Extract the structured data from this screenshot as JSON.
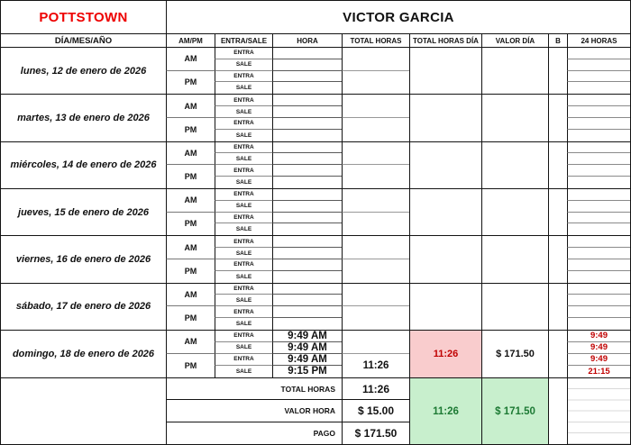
{
  "colors": {
    "location_red": "#ee0000",
    "value_red": "#c00000",
    "highlight_pink_bg": "#f9cccd",
    "highlight_green_bg": "#c8efcd",
    "highlight_green_text": "#1d7a34"
  },
  "title": {
    "location": "POTTSTOWN",
    "employee": "VICTOR GARCIA"
  },
  "header": {
    "day": "DÍA/MES/AÑO",
    "ampm": "AM/PM",
    "inout": "ENTRA/SALE",
    "hora": "HORA",
    "total_horas": "TOTAL HORAS",
    "total_horas_dia": "TOTAL HORAS DÍA",
    "valor_dia": "VALOR DÍA",
    "b": "B",
    "h24": "24 HORAS"
  },
  "row_labels": {
    "am": "AM",
    "pm": "PM",
    "entra": "ENTRA",
    "sale": "SALE"
  },
  "days": [
    {
      "label": "lunes, 12 de enero de 2026",
      "times": [
        "",
        "",
        "",
        ""
      ],
      "total_am": "",
      "total_pm": "",
      "total_dia": "",
      "valor_dia": "",
      "h24": [
        "",
        "",
        "",
        ""
      ]
    },
    {
      "label": "martes, 13 de enero de 2026",
      "times": [
        "",
        "",
        "",
        ""
      ],
      "total_am": "",
      "total_pm": "",
      "total_dia": "",
      "valor_dia": "",
      "h24": [
        "",
        "",
        "",
        ""
      ]
    },
    {
      "label": "miércoles, 14 de enero de 2026",
      "times": [
        "",
        "",
        "",
        ""
      ],
      "total_am": "",
      "total_pm": "",
      "total_dia": "",
      "valor_dia": "",
      "h24": [
        "",
        "",
        "",
        ""
      ]
    },
    {
      "label": "jueves, 15 de enero de 2026",
      "times": [
        "",
        "",
        "",
        ""
      ],
      "total_am": "",
      "total_pm": "",
      "total_dia": "",
      "valor_dia": "",
      "h24": [
        "",
        "",
        "",
        ""
      ]
    },
    {
      "label": "viernes, 16 de enero de 2026",
      "times": [
        "",
        "",
        "",
        ""
      ],
      "total_am": "",
      "total_pm": "",
      "total_dia": "",
      "valor_dia": "",
      "h24": [
        "",
        "",
        "",
        ""
      ]
    },
    {
      "label": "sábado, 17 de enero de 2026",
      "times": [
        "",
        "",
        "",
        ""
      ],
      "total_am": "",
      "total_pm": "",
      "total_dia": "",
      "valor_dia": "",
      "h24": [
        "",
        "",
        "",
        ""
      ]
    },
    {
      "label": "domingo, 18 de enero de 2026",
      "times": [
        "9:49 AM",
        "9:49 AM",
        "9:49 AM",
        "9:15 PM"
      ],
      "total_am": "",
      "total_pm": "11:26",
      "total_dia": "11:26",
      "valor_dia": "$ 171.50",
      "h24": [
        "9:49",
        "9:49",
        "9:49",
        "21:15"
      ]
    }
  ],
  "summary": {
    "rows": [
      {
        "label": "TOTAL HORAS",
        "value": "11:26"
      },
      {
        "label": "VALOR HORA",
        "value": "$ 15.00"
      },
      {
        "label": "PAGO",
        "value": "$ 171.50"
      }
    ],
    "green_total_horas": "11:26",
    "green_valor": "$ 171.50"
  }
}
